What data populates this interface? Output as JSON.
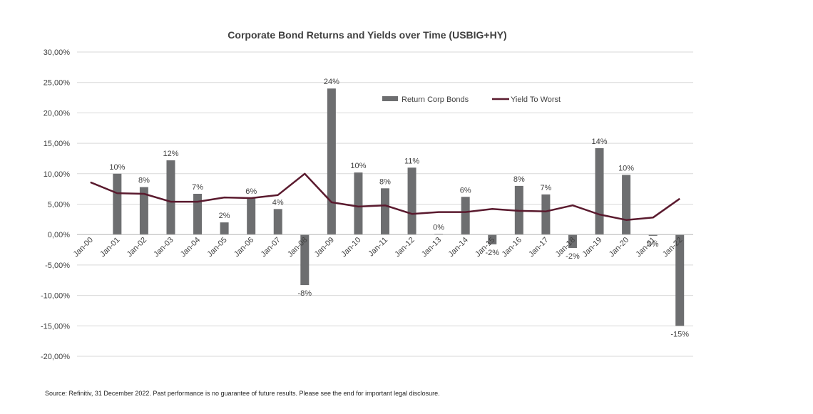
{
  "chart_data": {
    "type": "bar",
    "title": "Corporate Bond Returns and Yields over Time (USBIG+HY)",
    "categories": [
      "Jan-00",
      "Jan-01",
      "Jan-02",
      "Jan-03",
      "Jan-04",
      "Jan-05",
      "Jan-06",
      "Jan-07",
      "Jan-08",
      "Jan-09",
      "Jan-10",
      "Jan-11",
      "Jan-12",
      "Jan-13",
      "Jan-14",
      "Jan-15",
      "Jan-16",
      "Jan-17",
      "Jan-18",
      "Jan-19",
      "Jan-20",
      "Jan-21",
      "Jan-22"
    ],
    "series": [
      {
        "name": "Return Corp Bonds",
        "type": "bar",
        "color": "#6d6e70",
        "values": [
          null,
          10.0,
          7.8,
          12.2,
          6.7,
          2.0,
          6.0,
          4.2,
          -8.3,
          24.0,
          10.2,
          7.6,
          11.0,
          0.1,
          6.2,
          -1.6,
          8.0,
          6.6,
          -2.2,
          14.2,
          9.8,
          -0.2,
          -15.0
        ],
        "labels": [
          "",
          "10%",
          "8%",
          "12%",
          "7%",
          "2%",
          "6%",
          "4%",
          "-8%",
          "24%",
          "10%",
          "8%",
          "11%",
          "0%",
          "6%",
          "-2%",
          "8%",
          "7%",
          "-2%",
          "14%",
          "10%",
          "0%",
          "-15%"
        ]
      },
      {
        "name": "Yield To Worst",
        "type": "line",
        "color": "#5a1a2e",
        "values": [
          8.6,
          6.8,
          6.7,
          5.4,
          5.4,
          6.1,
          6.0,
          6.5,
          10.0,
          5.3,
          4.6,
          4.8,
          3.4,
          3.7,
          3.7,
          4.2,
          3.9,
          3.8,
          4.8,
          3.3,
          2.4,
          2.8,
          5.9
        ]
      }
    ],
    "ylim": [
      -20,
      30
    ],
    "ytick_values": [
      -20,
      -15,
      -10,
      -5,
      0,
      5,
      10,
      15,
      20,
      25,
      30
    ],
    "ytick_labels": [
      "-20,00%",
      "-15,00%",
      "-10,00%",
      "-5,00%",
      "0,00%",
      "5,00%",
      "10,00%",
      "15,00%",
      "20,00%",
      "25,00%",
      "30,00%"
    ],
    "xlabel": "",
    "ylabel": "",
    "grid": true,
    "legend_position": "top-right"
  },
  "footnote": "Source: Refinitiv, 31 December  2022. Past performance is no guarantee of future results. Please see the end for important legal disclosure."
}
